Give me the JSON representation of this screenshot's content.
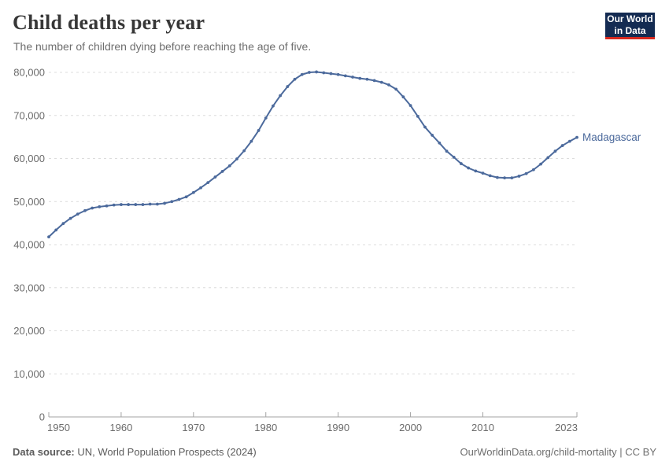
{
  "header": {
    "title": "Child deaths per year",
    "subtitle": "The number of children dying before reaching the age of five."
  },
  "logo": {
    "line1": "Our World",
    "line2": "in Data",
    "bg_color": "#142b52",
    "accent_color": "#d7291f"
  },
  "footer": {
    "source_label": "Data source:",
    "source_text": " UN, World Population Prospects (2024)",
    "right_text": "OurWorldinData.org/child-mortality | CC BY"
  },
  "colors": {
    "line": "#4c6a9c",
    "gridline": "#dcdcdc",
    "axis": "#a3a3a3",
    "tick_label": "#6b6b6b"
  },
  "chart_data": {
    "type": "line",
    "title": "Child deaths per year",
    "subtitle": "The number of children dying before reaching the age of five.",
    "xlabel": "",
    "ylabel": "",
    "xlim": [
      1950,
      2023
    ],
    "ylim": [
      0,
      80000
    ],
    "grid": "horizontal-dashed",
    "legend": "end-of-line-label",
    "marker": "dot",
    "xticks": [
      1950,
      1960,
      1970,
      1980,
      1990,
      2000,
      2010,
      2023
    ],
    "xtick_labels": [
      "1950",
      "1960",
      "1970",
      "1980",
      "1990",
      "2000",
      "2010",
      "2023"
    ],
    "yticks": [
      0,
      10000,
      20000,
      30000,
      40000,
      50000,
      60000,
      70000,
      80000
    ],
    "ytick_labels": [
      "0",
      "10,000",
      "20,000",
      "30,000",
      "40,000",
      "50,000",
      "60,000",
      "70,000",
      "80,000"
    ],
    "series": [
      {
        "name": "Madagascar",
        "color": "#4c6a9c",
        "years": [
          1950,
          1951,
          1952,
          1953,
          1954,
          1955,
          1956,
          1957,
          1958,
          1959,
          1960,
          1961,
          1962,
          1963,
          1964,
          1965,
          1966,
          1967,
          1968,
          1969,
          1970,
          1971,
          1972,
          1973,
          1974,
          1975,
          1976,
          1977,
          1978,
          1979,
          1980,
          1981,
          1982,
          1983,
          1984,
          1985,
          1986,
          1987,
          1988,
          1989,
          1990,
          1991,
          1992,
          1993,
          1994,
          1995,
          1996,
          1997,
          1998,
          1999,
          2000,
          2001,
          2002,
          2003,
          2004,
          2005,
          2006,
          2007,
          2008,
          2009,
          2010,
          2011,
          2012,
          2013,
          2014,
          2015,
          2016,
          2017,
          2018,
          2019,
          2020,
          2021,
          2022,
          2023
        ],
        "values": [
          41800,
          43400,
          44900,
          46100,
          47100,
          47900,
          48500,
          48800,
          49000,
          49200,
          49300,
          49300,
          49300,
          49300,
          49400,
          49400,
          49600,
          50000,
          50500,
          51100,
          52100,
          53200,
          54400,
          55700,
          57000,
          58300,
          59900,
          61800,
          64000,
          66500,
          69400,
          72200,
          74600,
          76700,
          78400,
          79500,
          80000,
          80100,
          79900,
          79700,
          79500,
          79200,
          78900,
          78600,
          78400,
          78100,
          77700,
          77100,
          76100,
          74300,
          72300,
          69800,
          67300,
          65400,
          63600,
          61700,
          60300,
          58800,
          57800,
          57100,
          56600,
          56000,
          55600,
          55500,
          55500,
          55900,
          56500,
          57400,
          58700,
          60200,
          61700,
          63000,
          64000,
          64900
        ]
      }
    ]
  }
}
